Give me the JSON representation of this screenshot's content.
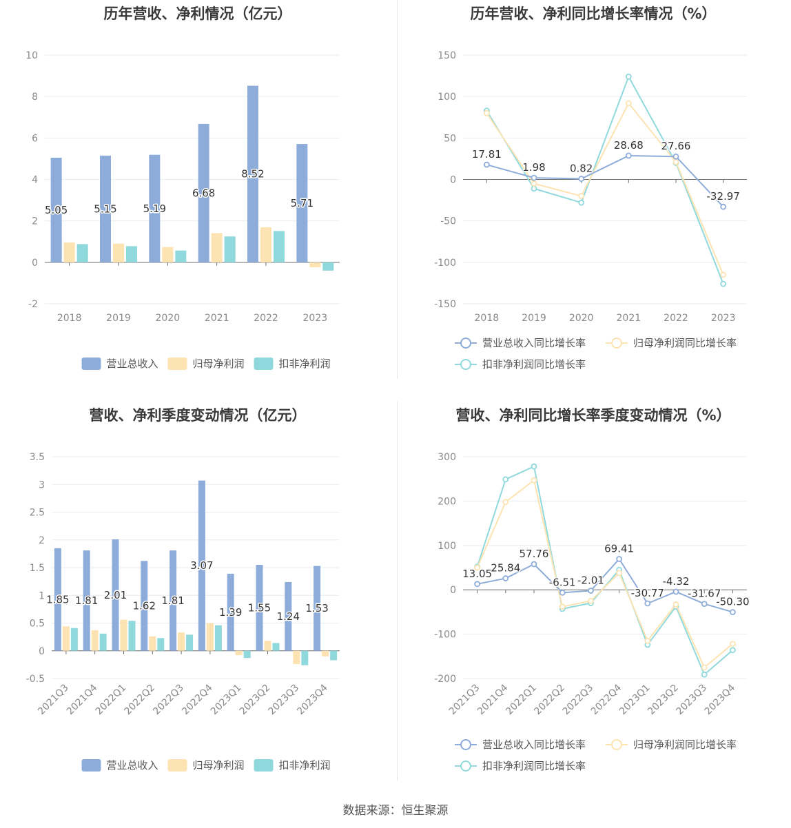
{
  "source_label": "数据来源：恒生聚源",
  "colors": {
    "revenue": "#8eacd9",
    "net_profit": "#fde3b2",
    "deducted_profit": "#8fd9dc",
    "grid": "#e8ebf3",
    "axis": "#6e6e6e"
  },
  "chart_data": [
    {
      "id": "annual_amounts",
      "type": "bar",
      "title": "历年营收、净利情况（亿元）",
      "categories": [
        "2018",
        "2019",
        "2020",
        "2021",
        "2022",
        "2023"
      ],
      "yticks": [
        "10",
        "8",
        "6",
        "4",
        "2",
        "0",
        "-2"
      ],
      "ylim": [
        -2,
        10
      ],
      "grid": true,
      "legend_position": "bottom",
      "series": [
        {
          "name": "营业总收入",
          "values": [
            5.05,
            5.15,
            5.19,
            6.68,
            8.52,
            5.71
          ],
          "labels": [
            "5.05",
            "5.15",
            "5.19",
            "6.68",
            "8.52",
            "5.71"
          ]
        },
        {
          "name": "归母净利润",
          "values": [
            0.96,
            0.9,
            0.74,
            1.41,
            1.69,
            -0.24
          ]
        },
        {
          "name": "扣非净利润",
          "values": [
            0.88,
            0.78,
            0.57,
            1.25,
            1.51,
            -0.4
          ]
        }
      ]
    },
    {
      "id": "annual_growth",
      "type": "line",
      "title": "历年营收、净利同比增长率情况（%）",
      "categories": [
        "2018",
        "2019",
        "2020",
        "2021",
        "2022",
        "2023"
      ],
      "yticks": [
        "150",
        "100",
        "50",
        "0",
        "-50",
        "-100",
        "-150"
      ],
      "ylim": [
        -150,
        150
      ],
      "grid": true,
      "legend_position": "bottom",
      "series": [
        {
          "name": "营业总收入同比增长率",
          "values": [
            17.81,
            1.98,
            0.82,
            28.68,
            27.66,
            -32.97
          ],
          "labels": [
            "17.81",
            "1.98",
            "0.82",
            "28.68",
            "27.66",
            "-32.97"
          ]
        },
        {
          "name": "归母净利润同比增长率",
          "values": [
            80,
            -5,
            -20,
            92,
            21,
            -115
          ]
        },
        {
          "name": "扣非净利润同比增长率",
          "values": [
            83,
            -11,
            -28,
            124,
            20,
            -126
          ]
        }
      ]
    },
    {
      "id": "quarterly_amounts",
      "type": "bar",
      "title": "营收、净利季度变动情况（亿元）",
      "categories": [
        "2021Q3",
        "2021Q4",
        "2022Q1",
        "2022Q2",
        "2022Q3",
        "2022Q4",
        "2023Q1",
        "2023Q2",
        "2023Q3",
        "2023Q4"
      ],
      "yticks": [
        "3.5",
        "3",
        "2.5",
        "2",
        "1.5",
        "1",
        "0.5",
        "0",
        "-0.5"
      ],
      "ylim": [
        -0.5,
        3.5
      ],
      "grid": true,
      "legend_position": "bottom",
      "series": [
        {
          "name": "营业总收入",
          "values": [
            1.85,
            1.81,
            2.01,
            1.62,
            1.81,
            3.07,
            1.39,
            1.55,
            1.24,
            1.53
          ],
          "labels": [
            "1.85",
            "1.81",
            "2.01",
            "1.62",
            "1.81",
            "3.07",
            "1.39",
            "1.55",
            "1.24",
            "1.53"
          ]
        },
        {
          "name": "归母净利润",
          "values": [
            0.44,
            0.37,
            0.56,
            0.26,
            0.33,
            0.5,
            -0.08,
            0.18,
            -0.24,
            -0.1
          ]
        },
        {
          "name": "扣非净利润",
          "values": [
            0.41,
            0.31,
            0.54,
            0.23,
            0.29,
            0.46,
            -0.13,
            0.14,
            -0.26,
            -0.17
          ]
        }
      ]
    },
    {
      "id": "quarterly_growth",
      "type": "line",
      "title": "营收、净利同比增长率季度变动情况（%）",
      "categories": [
        "2021Q3",
        "2021Q4",
        "2022Q1",
        "2022Q2",
        "2022Q3",
        "2022Q4",
        "2023Q1",
        "2023Q2",
        "2023Q3",
        "2023Q4"
      ],
      "yticks": [
        "300",
        "200",
        "100",
        "0",
        "-100",
        "-200"
      ],
      "ylim": [
        -200,
        300
      ],
      "grid": true,
      "legend_position": "bottom",
      "series": [
        {
          "name": "营业总收入同比增长率",
          "values": [
            13.05,
            25.84,
            57.76,
            -6.51,
            -2.01,
            69.41,
            -30.77,
            -4.32,
            -31.67,
            -50.3
          ],
          "labels": [
            "13.05",
            "25.84",
            "57.76",
            "-6.51",
            "-2.01",
            "69.41",
            "-30.77",
            "-4.32",
            "-31.67",
            "-50.30"
          ]
        },
        {
          "name": "归母净利润同比增长率",
          "values": [
            50,
            198,
            247,
            -38,
            -25,
            38,
            -115,
            -33,
            -175,
            -122
          ]
        },
        {
          "name": "扣非净利润同比增长率",
          "values": [
            52,
            249,
            278,
            -43,
            -30,
            45,
            -124,
            -38,
            -191,
            -136
          ]
        }
      ]
    }
  ]
}
